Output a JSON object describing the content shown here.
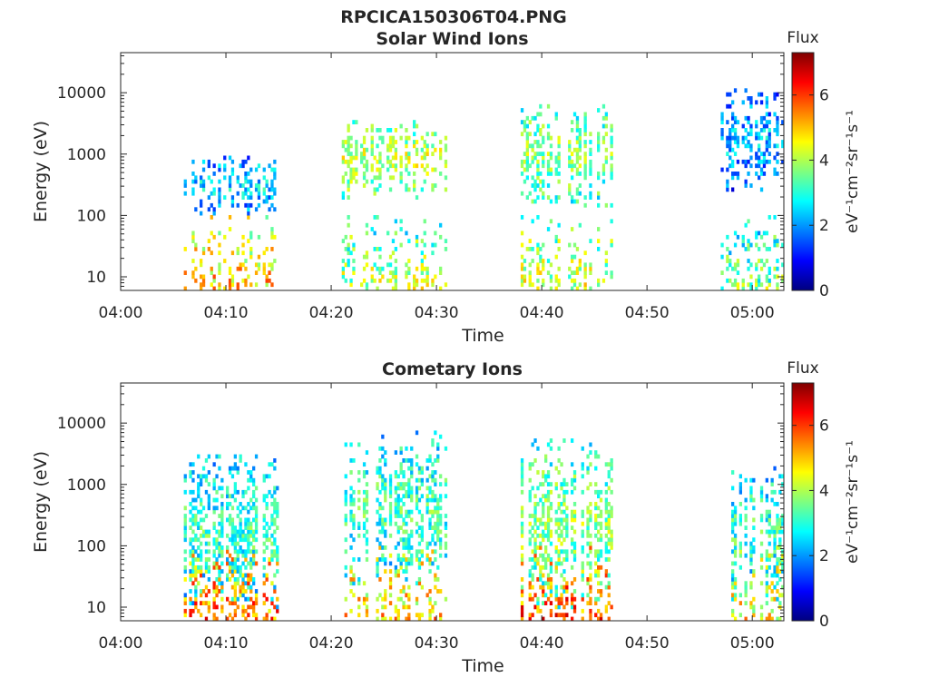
{
  "figure_title": "RPCICA150306T04.PNG",
  "colormap_stops": [
    "#00007f",
    "#0000ff",
    "#007fff",
    "#00ffff",
    "#7fff7f",
    "#ffff00",
    "#ff7f00",
    "#ff0000",
    "#7f0000"
  ],
  "chart_data": [
    {
      "type": "heatmap",
      "title": "Solar Wind Ions",
      "xlabel": "Time",
      "ylabel": "Energy (eV)",
      "yscale": "log",
      "xlim": [
        "04:00",
        "05:03"
      ],
      "ylim": [
        6,
        45000
      ],
      "x_ticks": [
        "04:00",
        "04:10",
        "04:20",
        "04:30",
        "04:40",
        "04:50",
        "05:00"
      ],
      "y_ticks": [
        10,
        100,
        1000,
        10000
      ],
      "y_tick_labels": [
        "10",
        "100",
        "1000",
        "10000"
      ],
      "colorbar": {
        "title": "Flux",
        "label": "eV⁻¹cm⁻²sr⁻¹s⁻¹",
        "range": [
          0,
          7.3
        ],
        "ticks": [
          0,
          2,
          4,
          6
        ]
      },
      "bursts": [
        {
          "start": "04:06",
          "end": "04:15",
          "ion_e": 280,
          "ion_spread": 0.35,
          "ion_flux": 2.6,
          "low_flux": 5.0
        },
        {
          "start": "04:21",
          "end": "04:31",
          "ion_e": 750,
          "ion_spread": 0.45,
          "ion_flux": 4.2,
          "low_flux": 4.0
        },
        {
          "start": "04:38",
          "end": "04:47",
          "ion_e": 900,
          "ion_spread": 0.6,
          "ion_flux": 3.8,
          "low_flux": 4.2
        },
        {
          "start": "04:57",
          "end": "05:03",
          "ion_e": 1500,
          "ion_spread": 0.6,
          "ion_flux": 2.3,
          "low_flux": 3.6
        }
      ]
    },
    {
      "type": "heatmap",
      "title": "Cometary Ions",
      "xlabel": "Time",
      "ylabel": "Energy (eV)",
      "yscale": "log",
      "xlim": [
        "04:00",
        "05:03"
      ],
      "ylim": [
        6,
        45000
      ],
      "x_ticks": [
        "04:00",
        "04:10",
        "04:20",
        "04:30",
        "04:40",
        "04:50",
        "05:00"
      ],
      "y_ticks": [
        10,
        100,
        1000,
        10000
      ],
      "y_tick_labels": [
        "10",
        "100",
        "1000",
        "10000"
      ],
      "colorbar": {
        "title": "Flux",
        "label": "eV⁻¹cm⁻²sr⁻¹s⁻¹",
        "range": [
          0,
          7.3
        ],
        "ticks": [
          0,
          2,
          4,
          6
        ]
      },
      "bursts": [
        {
          "start": "04:06",
          "end": "04:15",
          "ion_e": 150,
          "ion_spread": 0.9,
          "ion_flux": 3.2,
          "low_flux": 5.6
        },
        {
          "start": "04:21",
          "end": "04:31",
          "ion_e": 400,
          "ion_spread": 0.9,
          "ion_flux": 3.3,
          "low_flux": 5.0
        },
        {
          "start": "04:38",
          "end": "04:47",
          "ion_e": 200,
          "ion_spread": 1.0,
          "ion_flux": 3.8,
          "low_flux": 5.8
        },
        {
          "start": "04:58",
          "end": "05:03",
          "ion_e": 150,
          "ion_spread": 0.8,
          "ion_flux": 3.2,
          "low_flux": 4.6
        }
      ]
    }
  ]
}
